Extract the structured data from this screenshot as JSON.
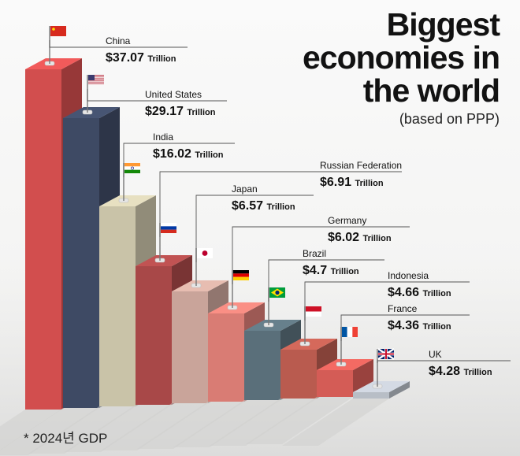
{
  "header": {
    "title_lines": [
      "Biggest",
      "economies in",
      "the world"
    ],
    "subtitle": "(based on PPP)"
  },
  "footnote": "* 2024년 GDP",
  "chart_data": {
    "type": "bar",
    "title": "Biggest economies in the world",
    "subtitle": "(based on PPP)",
    "unit": "Trillion",
    "value_prefix": "$",
    "categories": [
      "China",
      "United States",
      "India",
      "Russian Federation",
      "Japan",
      "Germany",
      "Brazil",
      "Indonesia",
      "France",
      "UK"
    ],
    "values": [
      37.07,
      29.17,
      16.02,
      6.91,
      6.57,
      6.02,
      4.7,
      4.66,
      4.36,
      4.28
    ],
    "value_labels": [
      "$37.07",
      "$29.17",
      "$16.02",
      "$6.91",
      "$6.57",
      "$6.02",
      "$4.7",
      "$4.66",
      "$4.36",
      "$4.28"
    ],
    "bar_colors": [
      "#d24e4e",
      "#3e4a64",
      "#c9c3a8",
      "#a84848",
      "#c9a49a",
      "#d97c74",
      "#5a6f7a",
      "#b95b4f",
      "#d45c56",
      "#b8bec6"
    ],
    "flags": [
      "china-flag",
      "usa-flag",
      "india-flag",
      "russia-flag",
      "japan-flag",
      "germany-flag",
      "brazil-flag",
      "indonesia-flag",
      "france-flag",
      "uk-flag"
    ],
    "legend": "none",
    "grid": false
  }
}
